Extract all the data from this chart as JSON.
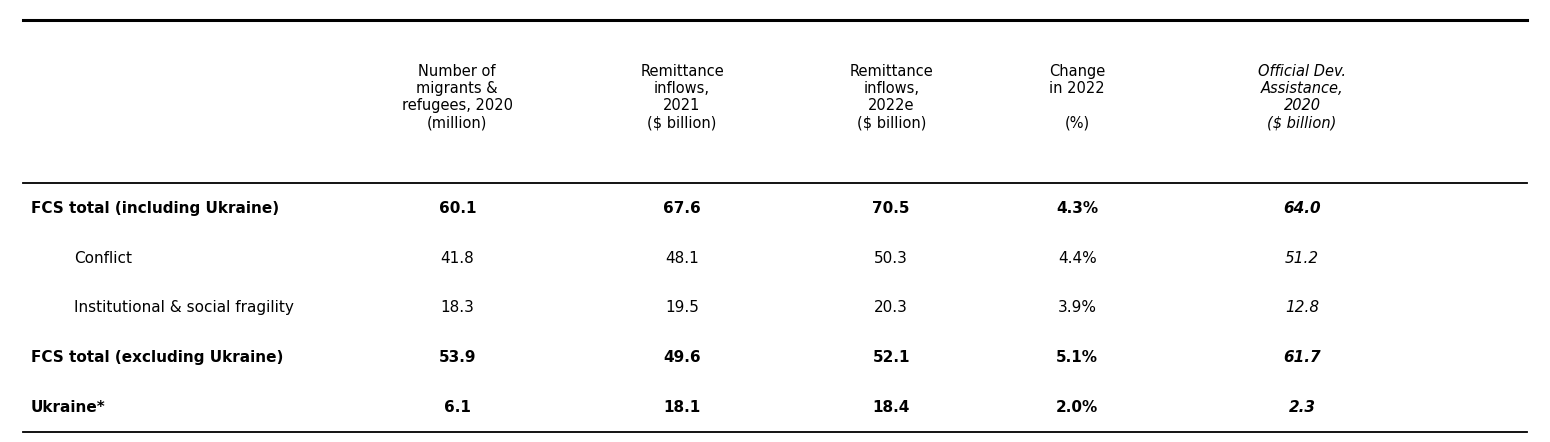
{
  "col_headers": [
    "Number of\nmigrants &\nrefugees, 2020\n(million)",
    "Remittance\ninflows,\n2021\n($ billion)",
    "Remittance\ninflows,\n2022e\n($ billion)",
    "Change\nin 2022\n\n(%)",
    "Official Dev.\nAssistance,\n2020\n($ billion)"
  ],
  "col_header_italic": [
    false,
    false,
    false,
    false,
    true
  ],
  "rows": [
    {
      "label": "FCS total (including Ukraine)",
      "values": [
        "60.1",
        "67.6",
        "70.5",
        "4.3%",
        "64.0"
      ],
      "bold": true,
      "indent": false
    },
    {
      "label": "Conflict",
      "values": [
        "41.8",
        "48.1",
        "50.3",
        "4.4%",
        "51.2"
      ],
      "bold": false,
      "indent": true
    },
    {
      "label": "Institutional & social fragility",
      "values": [
        "18.3",
        "19.5",
        "20.3",
        "3.9%",
        "12.8"
      ],
      "bold": false,
      "indent": true
    },
    {
      "label": "FCS total (excluding Ukraine)",
      "values": [
        "53.9",
        "49.6",
        "52.1",
        "5.1%",
        "61.7"
      ],
      "bold": true,
      "indent": false
    },
    {
      "label": "Ukraine*",
      "values": [
        "6.1",
        "18.1",
        "18.4",
        "2.0%",
        "2.3"
      ],
      "bold": true,
      "indent": false
    }
  ],
  "background_color": "#ffffff",
  "line_color": "#000000",
  "header_font_size": 10.5,
  "data_font_size": 11.0,
  "fig_width": 15.5,
  "fig_height": 4.42,
  "dpi": 100
}
